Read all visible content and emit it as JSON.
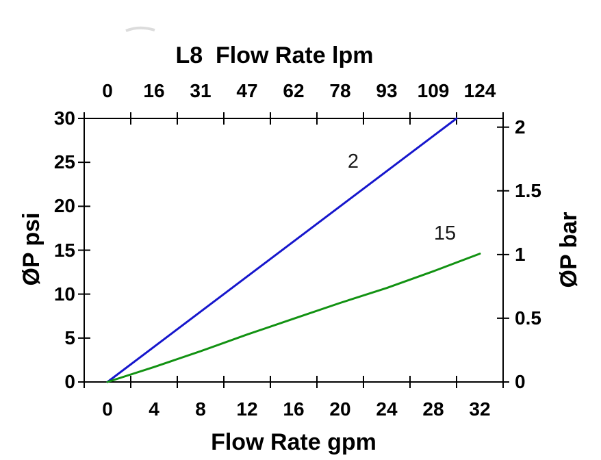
{
  "chart_data": {
    "type": "line",
    "title": "L8  Flow Rate lpm",
    "x_axis_bottom": {
      "label": "Flow Rate gpm",
      "ticks": [
        0,
        4,
        8,
        12,
        16,
        20,
        24,
        28,
        32
      ],
      "tick_labels": [
        "0",
        "4",
        "8",
        "12",
        "16",
        "20",
        "24",
        "28",
        "32"
      ],
      "range": [
        0,
        32
      ]
    },
    "x_axis_top": {
      "label": "L8  Flow Rate lpm",
      "ticks": [
        0,
        16,
        31,
        47,
        62,
        78,
        93,
        109,
        124
      ],
      "tick_labels": [
        "0",
        "16",
        "31",
        "47",
        "62",
        "78",
        "93",
        "109",
        "124"
      ],
      "unit": "lpm"
    },
    "y_axis_left": {
      "label": "ØP psi",
      "ticks": [
        0,
        5,
        10,
        15,
        20,
        25,
        30
      ],
      "tick_labels": [
        "0",
        "5",
        "10",
        "15",
        "20",
        "25",
        "30"
      ],
      "range": [
        0,
        30
      ]
    },
    "y_axis_right": {
      "label": "ØP bar",
      "ticks": [
        0,
        0.5,
        1,
        1.5,
        2
      ],
      "tick_labels": [
        "0",
        "0.5",
        "1",
        "1.5",
        "2"
      ],
      "psi_per_bar": 14.5038
    },
    "grid": false,
    "legend": "inline curve labels",
    "series": [
      {
        "name": "2",
        "color": "#1616cc",
        "x_gpm": [
          0,
          30
        ],
        "y_psi": [
          0,
          30
        ]
      },
      {
        "name": "15",
        "color": "#129212",
        "x_gpm": [
          0,
          4,
          8,
          12,
          16,
          20,
          24,
          28,
          32
        ],
        "y_psi": [
          0,
          1.7,
          3.5,
          5.4,
          7.2,
          9.0,
          10.7,
          12.6,
          14.6
        ]
      }
    ],
    "colors": {
      "axis": "#000000",
      "text": "#000000",
      "series_2": "#1616cc",
      "series_15": "#129212"
    }
  }
}
